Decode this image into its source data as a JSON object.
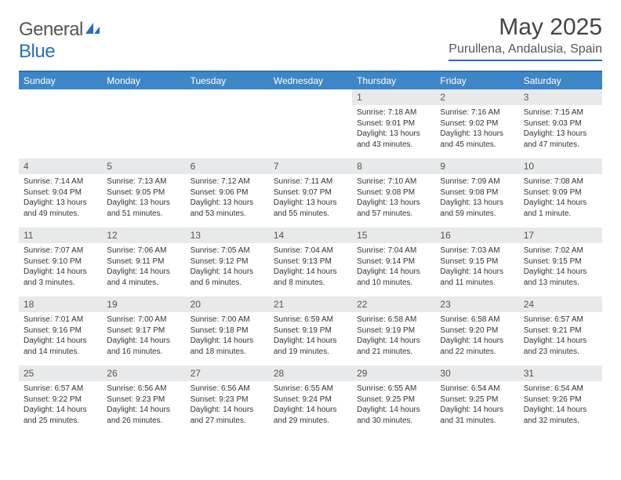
{
  "brand": {
    "name_a": "General",
    "name_b": "Blue"
  },
  "title": "May 2025",
  "location": "Purullena, Andalusia, Spain",
  "colors": {
    "header_bg": "#3f86c7",
    "rule": "#2a6fb5",
    "daynum_bg": "#e8e9ea",
    "text": "#333333"
  },
  "weekdays": [
    "Sunday",
    "Monday",
    "Tuesday",
    "Wednesday",
    "Thursday",
    "Friday",
    "Saturday"
  ],
  "layout": {
    "cols": 7,
    "rows": 5,
    "first_weekday_index": 4
  },
  "days": [
    {
      "n": 1,
      "sunrise": "7:18 AM",
      "sunset": "9:01 PM",
      "daylight": "13 hours and 43 minutes."
    },
    {
      "n": 2,
      "sunrise": "7:16 AM",
      "sunset": "9:02 PM",
      "daylight": "13 hours and 45 minutes."
    },
    {
      "n": 3,
      "sunrise": "7:15 AM",
      "sunset": "9:03 PM",
      "daylight": "13 hours and 47 minutes."
    },
    {
      "n": 4,
      "sunrise": "7:14 AM",
      "sunset": "9:04 PM",
      "daylight": "13 hours and 49 minutes."
    },
    {
      "n": 5,
      "sunrise": "7:13 AM",
      "sunset": "9:05 PM",
      "daylight": "13 hours and 51 minutes."
    },
    {
      "n": 6,
      "sunrise": "7:12 AM",
      "sunset": "9:06 PM",
      "daylight": "13 hours and 53 minutes."
    },
    {
      "n": 7,
      "sunrise": "7:11 AM",
      "sunset": "9:07 PM",
      "daylight": "13 hours and 55 minutes."
    },
    {
      "n": 8,
      "sunrise": "7:10 AM",
      "sunset": "9:08 PM",
      "daylight": "13 hours and 57 minutes."
    },
    {
      "n": 9,
      "sunrise": "7:09 AM",
      "sunset": "9:08 PM",
      "daylight": "13 hours and 59 minutes."
    },
    {
      "n": 10,
      "sunrise": "7:08 AM",
      "sunset": "9:09 PM",
      "daylight": "14 hours and 1 minute."
    },
    {
      "n": 11,
      "sunrise": "7:07 AM",
      "sunset": "9:10 PM",
      "daylight": "14 hours and 3 minutes."
    },
    {
      "n": 12,
      "sunrise": "7:06 AM",
      "sunset": "9:11 PM",
      "daylight": "14 hours and 4 minutes."
    },
    {
      "n": 13,
      "sunrise": "7:05 AM",
      "sunset": "9:12 PM",
      "daylight": "14 hours and 6 minutes."
    },
    {
      "n": 14,
      "sunrise": "7:04 AM",
      "sunset": "9:13 PM",
      "daylight": "14 hours and 8 minutes."
    },
    {
      "n": 15,
      "sunrise": "7:04 AM",
      "sunset": "9:14 PM",
      "daylight": "14 hours and 10 minutes."
    },
    {
      "n": 16,
      "sunrise": "7:03 AM",
      "sunset": "9:15 PM",
      "daylight": "14 hours and 11 minutes."
    },
    {
      "n": 17,
      "sunrise": "7:02 AM",
      "sunset": "9:15 PM",
      "daylight": "14 hours and 13 minutes."
    },
    {
      "n": 18,
      "sunrise": "7:01 AM",
      "sunset": "9:16 PM",
      "daylight": "14 hours and 14 minutes."
    },
    {
      "n": 19,
      "sunrise": "7:00 AM",
      "sunset": "9:17 PM",
      "daylight": "14 hours and 16 minutes."
    },
    {
      "n": 20,
      "sunrise": "7:00 AM",
      "sunset": "9:18 PM",
      "daylight": "14 hours and 18 minutes."
    },
    {
      "n": 21,
      "sunrise": "6:59 AM",
      "sunset": "9:19 PM",
      "daylight": "14 hours and 19 minutes."
    },
    {
      "n": 22,
      "sunrise": "6:58 AM",
      "sunset": "9:19 PM",
      "daylight": "14 hours and 21 minutes."
    },
    {
      "n": 23,
      "sunrise": "6:58 AM",
      "sunset": "9:20 PM",
      "daylight": "14 hours and 22 minutes."
    },
    {
      "n": 24,
      "sunrise": "6:57 AM",
      "sunset": "9:21 PM",
      "daylight": "14 hours and 23 minutes."
    },
    {
      "n": 25,
      "sunrise": "6:57 AM",
      "sunset": "9:22 PM",
      "daylight": "14 hours and 25 minutes."
    },
    {
      "n": 26,
      "sunrise": "6:56 AM",
      "sunset": "9:23 PM",
      "daylight": "14 hours and 26 minutes."
    },
    {
      "n": 27,
      "sunrise": "6:56 AM",
      "sunset": "9:23 PM",
      "daylight": "14 hours and 27 minutes."
    },
    {
      "n": 28,
      "sunrise": "6:55 AM",
      "sunset": "9:24 PM",
      "daylight": "14 hours and 29 minutes."
    },
    {
      "n": 29,
      "sunrise": "6:55 AM",
      "sunset": "9:25 PM",
      "daylight": "14 hours and 30 minutes."
    },
    {
      "n": 30,
      "sunrise": "6:54 AM",
      "sunset": "9:25 PM",
      "daylight": "14 hours and 31 minutes."
    },
    {
      "n": 31,
      "sunrise": "6:54 AM",
      "sunset": "9:26 PM",
      "daylight": "14 hours and 32 minutes."
    }
  ],
  "labels": {
    "sunrise": "Sunrise: ",
    "sunset": "Sunset: ",
    "daylight": "Daylight: "
  }
}
